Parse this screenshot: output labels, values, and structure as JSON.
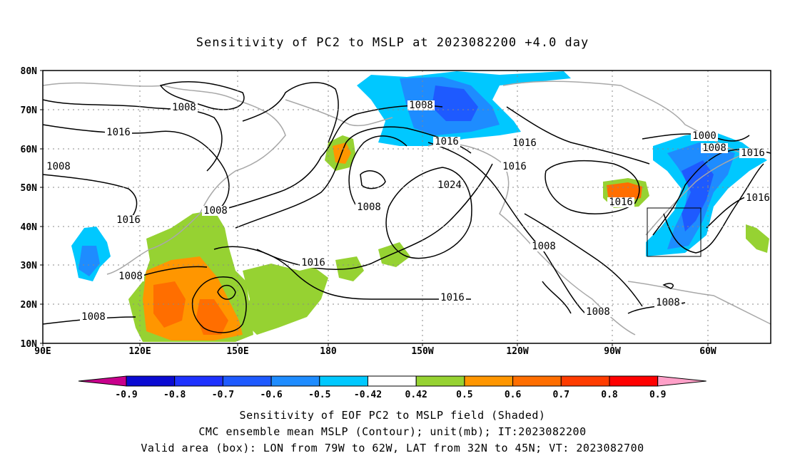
{
  "title": "Sensitivity of PC2 to MSLP at 2023082200 +4.0 day",
  "lat_ticks": [
    "80N",
    "70N",
    "60N",
    "50N",
    "40N",
    "30N",
    "20N",
    "10N"
  ],
  "lon_ticks": [
    "90E",
    "120E",
    "150E",
    "180",
    "150W",
    "120W",
    "90W",
    "60W"
  ],
  "contour_labels": [
    "1008",
    "1016",
    "1008",
    "1016",
    "1008",
    "1008",
    "1008",
    "1016",
    "1008",
    "1016",
    "1024",
    "1008",
    "1016",
    "1016",
    "1016",
    "1008",
    "1016",
    "1000",
    "1008",
    "1016",
    "1016",
    "1008",
    "1008"
  ],
  "colorbar": {
    "labels": [
      "-0.9",
      "-0.8",
      "-0.7",
      "-0.6",
      "-0.5",
      "-0.42",
      "0.42",
      "0.5",
      "0.6",
      "0.7",
      "0.8",
      "0.9"
    ],
    "colors": [
      "#0a0ad2",
      "#1e32ff",
      "#1e5aff",
      "#1e8cff",
      "#00c8ff",
      "#ffffff",
      "#96d232",
      "#ff9600",
      "#ff6e00",
      "#ff3c00",
      "#ff0000"
    ],
    "left_arrow_color": "#c8008c",
    "right_arrow_color": "#ffa0c8"
  },
  "footer": {
    "line1": "Sensitivity of EOF PC2 to MSLP field (Shaded)",
    "line2": "CMC ensemble mean MSLP (Contour); unit(mb); IT:2023082200",
    "line3": "Valid area (box): LON from 79W to 62W, LAT from 32N to 45N; VT: 2023082700"
  }
}
